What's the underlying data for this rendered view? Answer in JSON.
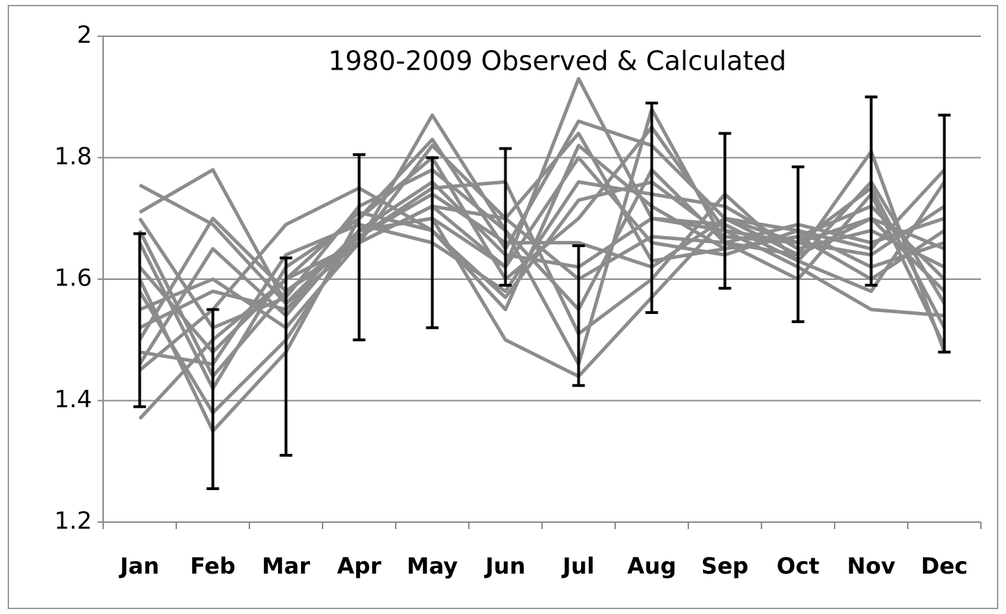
{
  "chart_data": {
    "type": "line",
    "title": "1980-2009 Observed & Calculated",
    "categories": [
      "Jan",
      "Feb",
      "Mar",
      "Apr",
      "May",
      "Jun",
      "Jul",
      "Aug",
      "Sep",
      "Oct",
      "Nov",
      "Dec"
    ],
    "ylim": [
      1.2,
      2
    ],
    "yticks": [
      {
        "value": 1.2,
        "label": "1.2"
      },
      1.4,
      1.6,
      1.8,
      2
    ],
    "grid": true,
    "line_color": "#8c8c8c",
    "error_color": "#000000",
    "series": [
      {
        "values": [
          1.755,
          1.69,
          1.56,
          1.66,
          1.72,
          1.62,
          1.93,
          1.7,
          1.68,
          1.66,
          1.7,
          1.65
        ]
      },
      {
        "values": [
          1.37,
          1.5,
          1.6,
          1.66,
          1.87,
          1.68,
          1.46,
          1.88,
          1.66,
          1.64,
          1.81,
          1.48
        ]
      },
      {
        "values": [
          1.71,
          1.78,
          1.56,
          1.68,
          1.7,
          1.5,
          1.44,
          1.57,
          1.7,
          1.68,
          1.65,
          1.78
        ]
      },
      {
        "values": [
          1.6,
          1.35,
          1.48,
          1.7,
          1.83,
          1.65,
          1.86,
          1.82,
          1.7,
          1.66,
          1.75,
          1.52
        ]
      },
      {
        "values": [
          1.5,
          1.7,
          1.58,
          1.67,
          1.75,
          1.76,
          1.51,
          1.6,
          1.74,
          1.63,
          1.58,
          1.76
        ]
      },
      {
        "values": [
          1.45,
          1.55,
          1.69,
          1.75,
          1.68,
          1.55,
          1.82,
          1.72,
          1.65,
          1.67,
          1.72,
          1.6
        ]
      },
      {
        "values": [
          1.66,
          1.42,
          1.62,
          1.7,
          1.8,
          1.6,
          1.7,
          1.85,
          1.68,
          1.62,
          1.55,
          1.54
        ]
      },
      {
        "values": [
          1.55,
          1.6,
          1.52,
          1.66,
          1.72,
          1.7,
          1.6,
          1.67,
          1.66,
          1.69,
          1.66,
          1.7
        ]
      },
      {
        "values": [
          1.48,
          1.46,
          1.64,
          1.69,
          1.66,
          1.58,
          1.76,
          1.74,
          1.72,
          1.65,
          1.68,
          1.62
        ]
      },
      {
        "values": [
          1.7,
          1.52,
          1.57,
          1.72,
          1.78,
          1.68,
          1.55,
          1.78,
          1.66,
          1.6,
          1.74,
          1.49
        ]
      },
      {
        "values": [
          1.58,
          1.38,
          1.5,
          1.68,
          1.7,
          1.62,
          1.8,
          1.66,
          1.64,
          1.68,
          1.62,
          1.66
        ]
      },
      {
        "values": [
          1.52,
          1.58,
          1.55,
          1.67,
          1.74,
          1.66,
          1.66,
          1.62,
          1.7,
          1.64,
          1.7,
          1.58
        ]
      },
      {
        "values": [
          1.62,
          1.48,
          1.6,
          1.71,
          1.68,
          1.57,
          1.73,
          1.76,
          1.67,
          1.66,
          1.64,
          1.72
        ]
      },
      {
        "values": [
          1.46,
          1.65,
          1.54,
          1.68,
          1.76,
          1.64,
          1.62,
          1.7,
          1.69,
          1.63,
          1.76,
          1.56
        ]
      },
      {
        "values": [
          1.68,
          1.44,
          1.58,
          1.66,
          1.82,
          1.7,
          1.84,
          1.63,
          1.65,
          1.67,
          1.6,
          1.68
        ]
      }
    ],
    "error_low": [
      1.39,
      1.255,
      1.31,
      1.5,
      1.52,
      1.59,
      1.425,
      1.545,
      1.585,
      1.53,
      1.59,
      1.48
    ],
    "error_high": [
      1.675,
      1.55,
      1.635,
      1.805,
      1.8,
      1.815,
      1.655,
      1.89,
      1.84,
      1.785,
      1.9,
      1.87
    ]
  }
}
